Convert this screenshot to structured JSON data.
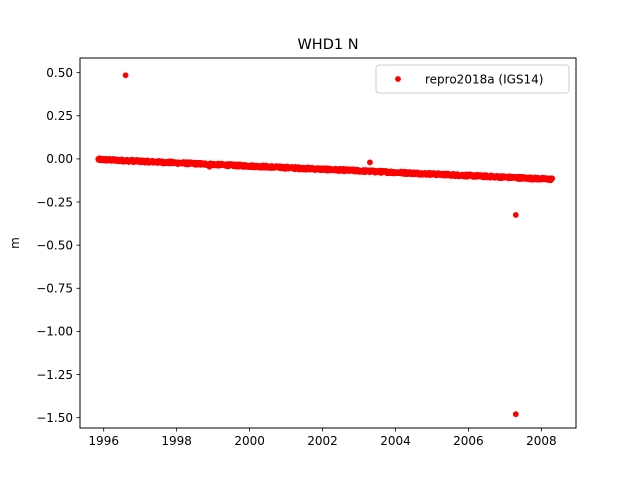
{
  "chart_data": {
    "type": "scatter",
    "title": "WHD1 N",
    "xlabel": "",
    "ylabel": "m",
    "xlim": [
      1995.35,
      2008.95
    ],
    "ylim": [
      -1.56,
      0.585
    ],
    "x_ticks": [
      1996,
      1998,
      2000,
      2002,
      2004,
      2006,
      2008
    ],
    "x_tick_labels": [
      "1996",
      "1998",
      "2000",
      "2002",
      "2004",
      "2006",
      "2008"
    ],
    "y_ticks": [
      0.5,
      0.25,
      0.0,
      -0.25,
      -0.5,
      -0.75,
      -1.0,
      -1.25,
      -1.5
    ],
    "y_tick_labels": [
      "0.50",
      "0.25",
      "0.00",
      "−0.25",
      "−0.50",
      "−0.75",
      "−1.00",
      "−1.25",
      "−1.50"
    ],
    "grid": false,
    "legend_position": "top-right",
    "series": [
      {
        "name": "repro2018a (IGS14)",
        "color": "#ff0000",
        "marker": "circle",
        "trend": {
          "x_start": 1995.85,
          "x_end": 2008.3,
          "y_start": -0.003,
          "y_end": -0.118
        },
        "outliers": [
          {
            "x": 1996.6,
            "y": 0.485
          },
          {
            "x": 1998.9,
            "y": -0.045
          },
          {
            "x": 2003.3,
            "y": -0.02
          },
          {
            "x": 2007.3,
            "y": -0.325
          },
          {
            "x": 2007.3,
            "y": -1.48
          }
        ]
      }
    ]
  }
}
